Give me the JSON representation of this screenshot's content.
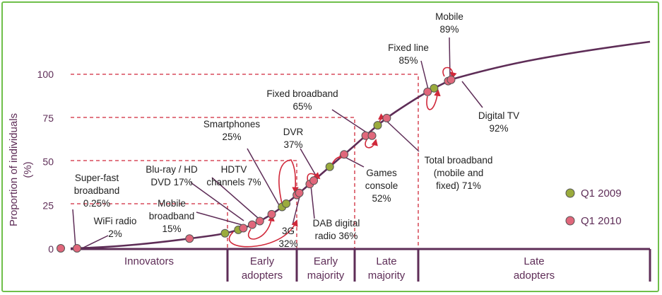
{
  "chart_data": {
    "type": "line",
    "title": "",
    "ylabel": "Proportion of individuals (%)",
    "ylim": [
      0,
      100
    ],
    "yticks": [
      0,
      25,
      50,
      75,
      100
    ],
    "grid": false,
    "legend_position": "bottom-right",
    "legend": [
      {
        "name": "Q1 2009",
        "color": "#9aab3c"
      },
      {
        "name": "Q1 2010",
        "color": "#e0677b"
      }
    ],
    "stages": [
      "Innovators",
      "Early adopters",
      "Early majority",
      "Late majority",
      "Late adopters"
    ],
    "annotations": [
      "Super-fast broadband 0.25%",
      "WiFi radio 2%",
      "Mobile broadband 15%",
      "Blu-ray / HD DVD 17%",
      "HDTV channels 7%",
      "Smartphones 25%",
      "3G 32%",
      "DVR 37%",
      "DAB digital radio 36%",
      "Games console 52%",
      "Fixed broadband 65%",
      "Total broadband (mobile and fixed) 71%",
      "Fixed line 85%",
      "Mobile 89%",
      "Digital TV 92%"
    ],
    "series": [
      {
        "name": "Q1 2009",
        "values": [
          9,
          11,
          24,
          26,
          47,
          71,
          92
        ]
      },
      {
        "name": "Q1 2010",
        "values": [
          0,
          0,
          6,
          12,
          14,
          16,
          20,
          31,
          32,
          37,
          39,
          54,
          65,
          65,
          75,
          90,
          96,
          97
        ]
      }
    ]
  }
}
